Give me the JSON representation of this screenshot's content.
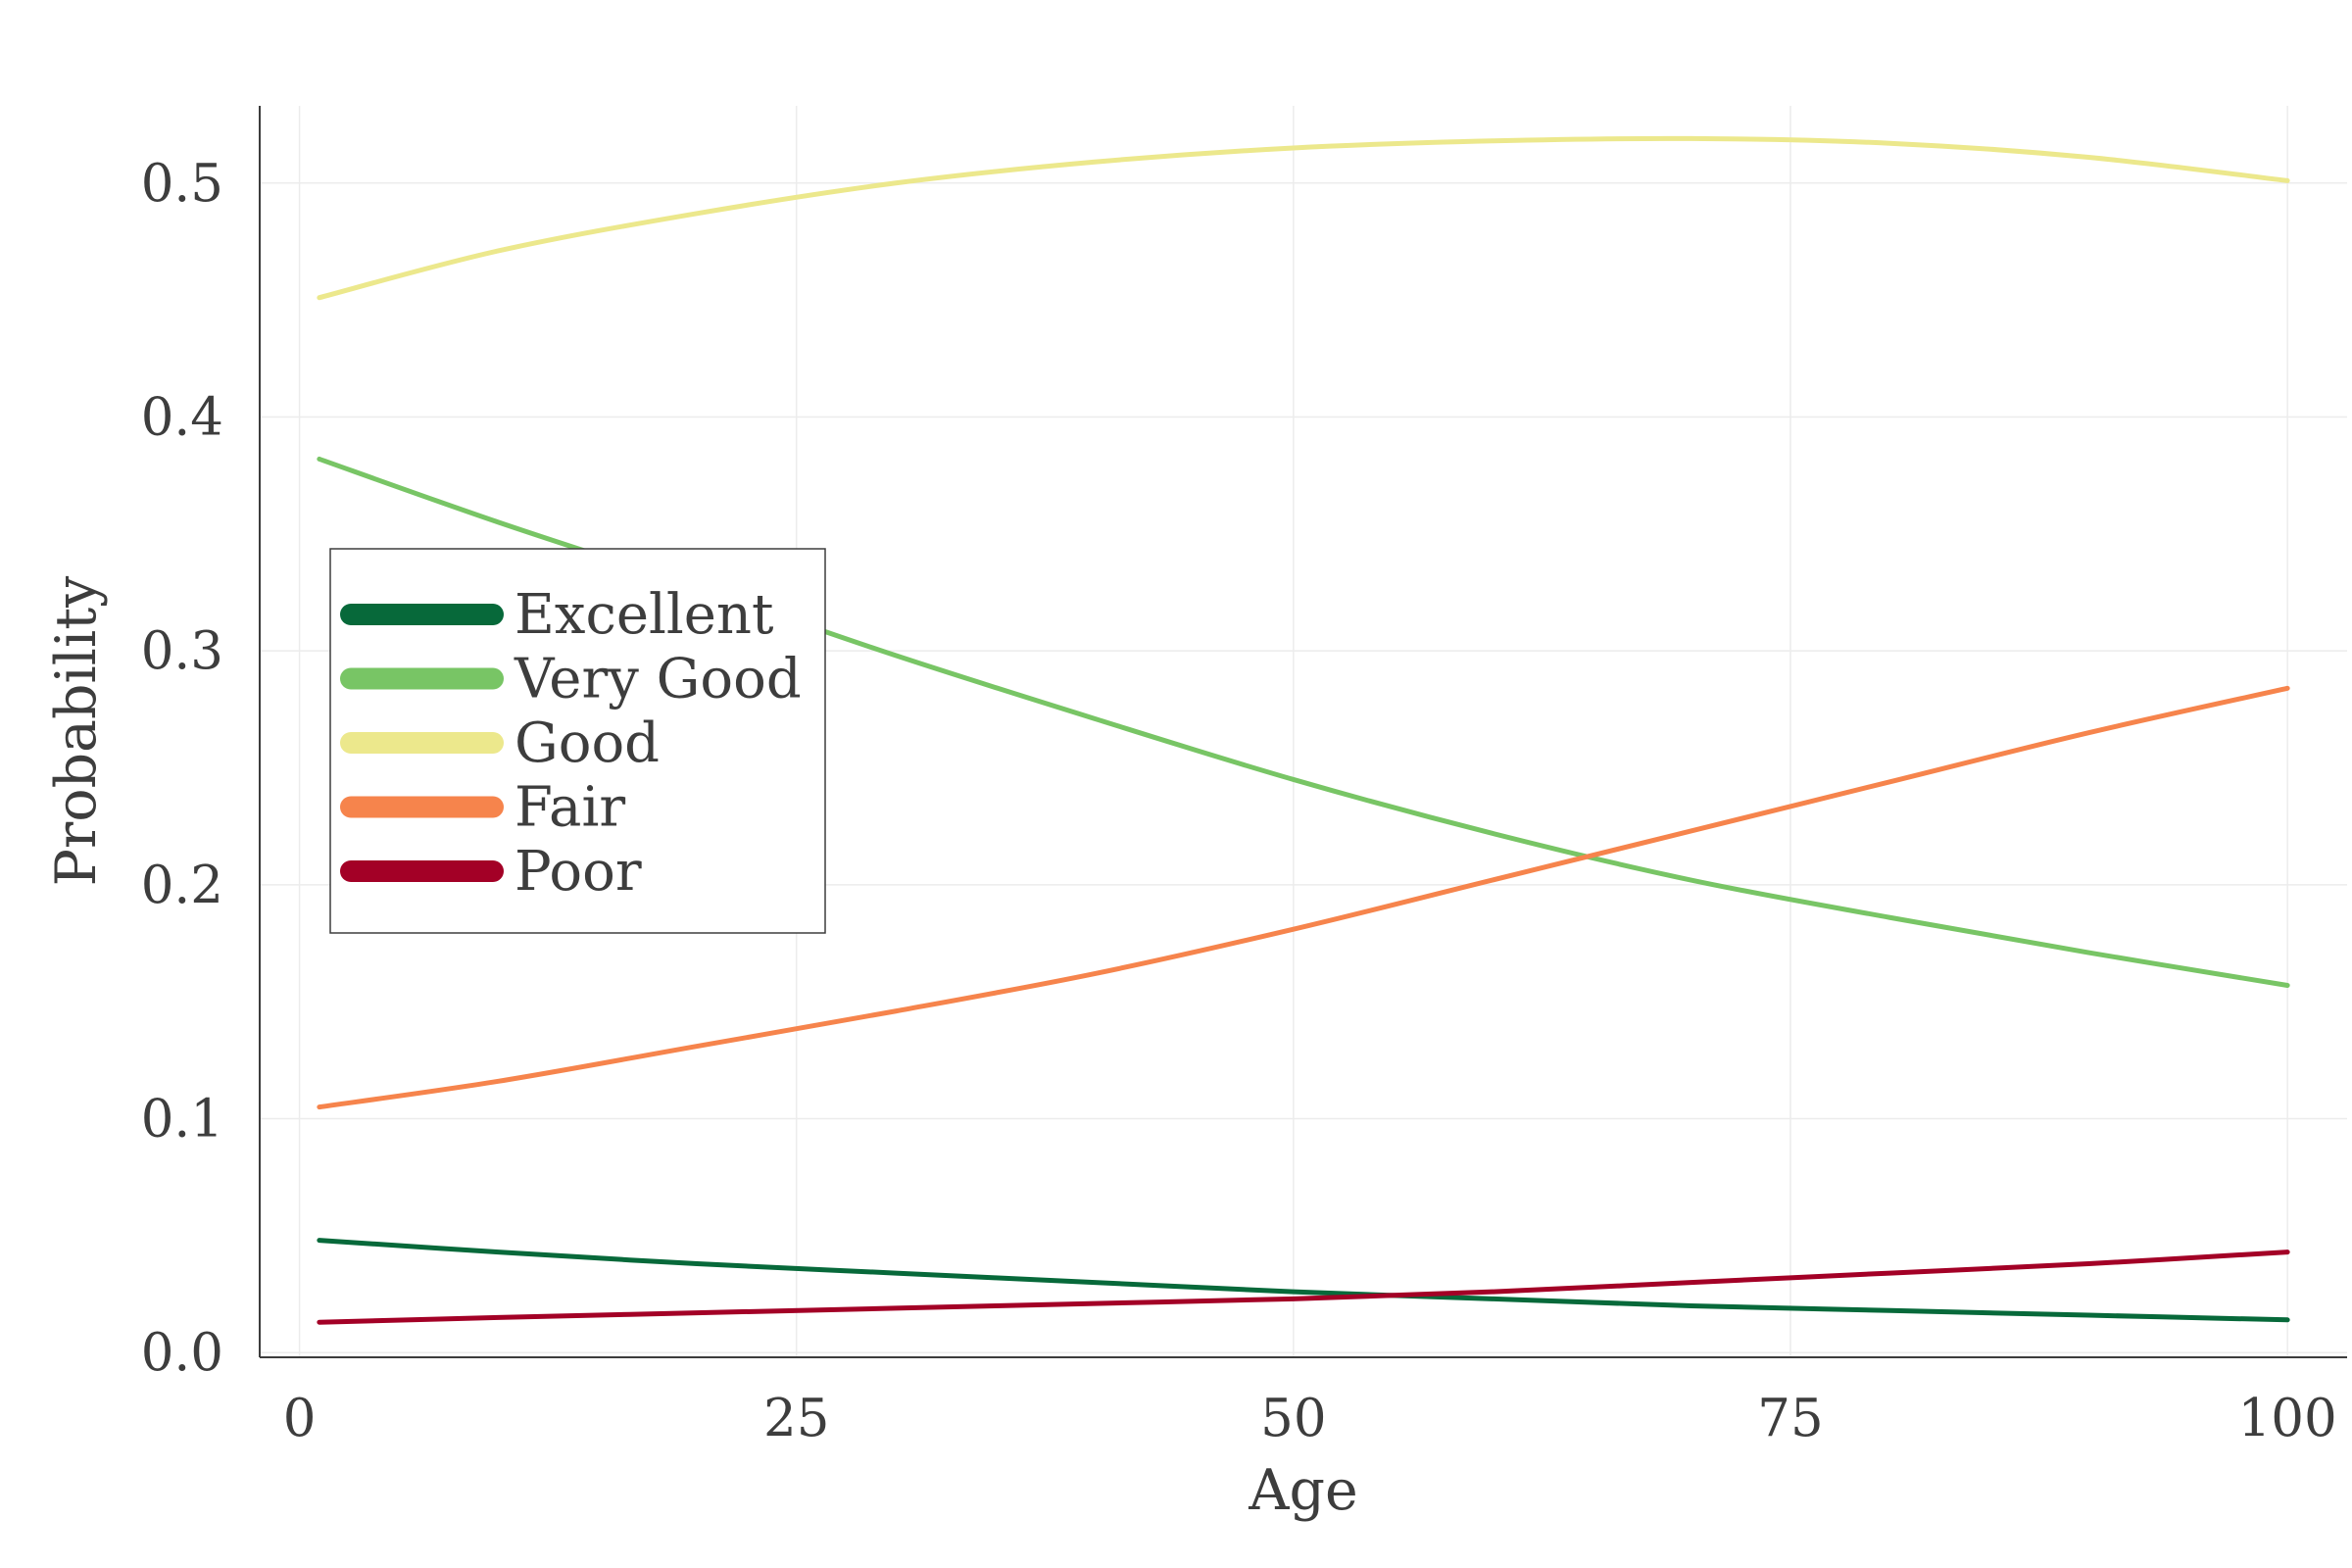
{
  "chart_data": {
    "type": "line",
    "xlabel": "Age",
    "ylabel": "Probability",
    "xlim": [
      -2,
      103
    ],
    "ylim": [
      -0.002,
      0.533
    ],
    "xticks": [
      0,
      25,
      50,
      75,
      100
    ],
    "xtick_labels": [
      "0",
      "25",
      "50",
      "75",
      "100"
    ],
    "yticks": [
      0.0,
      0.1,
      0.2,
      0.3,
      0.4,
      0.5
    ],
    "ytick_labels": [
      "0.0",
      "0.1",
      "0.2",
      "0.3",
      "0.4",
      "0.5"
    ],
    "grid": true,
    "legend_position": "left-middle",
    "x": [
      1,
      10,
      20,
      30,
      40,
      50,
      60,
      70,
      80,
      90,
      100
    ],
    "series": [
      {
        "name": "Excellent",
        "color": "#07693a",
        "values": [
          0.048,
          0.043,
          0.038,
          0.034,
          0.03,
          0.026,
          0.023,
          0.02,
          0.018,
          0.016,
          0.014
        ]
      },
      {
        "name": "Very Good",
        "color": "#78c565",
        "values": [
          0.382,
          0.355,
          0.327,
          0.298,
          0.271,
          0.245,
          0.222,
          0.202,
          0.186,
          0.171,
          0.157
        ]
      },
      {
        "name": "Good",
        "color": "#ece88c",
        "values": [
          0.451,
          0.471,
          0.487,
          0.5,
          0.509,
          0.515,
          0.518,
          0.519,
          0.517,
          0.511,
          0.501
        ]
      },
      {
        "name": "Fair",
        "color": "#f6844c",
        "values": [
          0.105,
          0.116,
          0.131,
          0.146,
          0.162,
          0.181,
          0.202,
          0.223,
          0.244,
          0.265,
          0.284
        ]
      },
      {
        "name": "Poor",
        "color": "#a30026",
        "values": [
          0.013,
          0.015,
          0.017,
          0.019,
          0.021,
          0.023,
          0.026,
          0.03,
          0.034,
          0.038,
          0.043
        ]
      }
    ]
  }
}
